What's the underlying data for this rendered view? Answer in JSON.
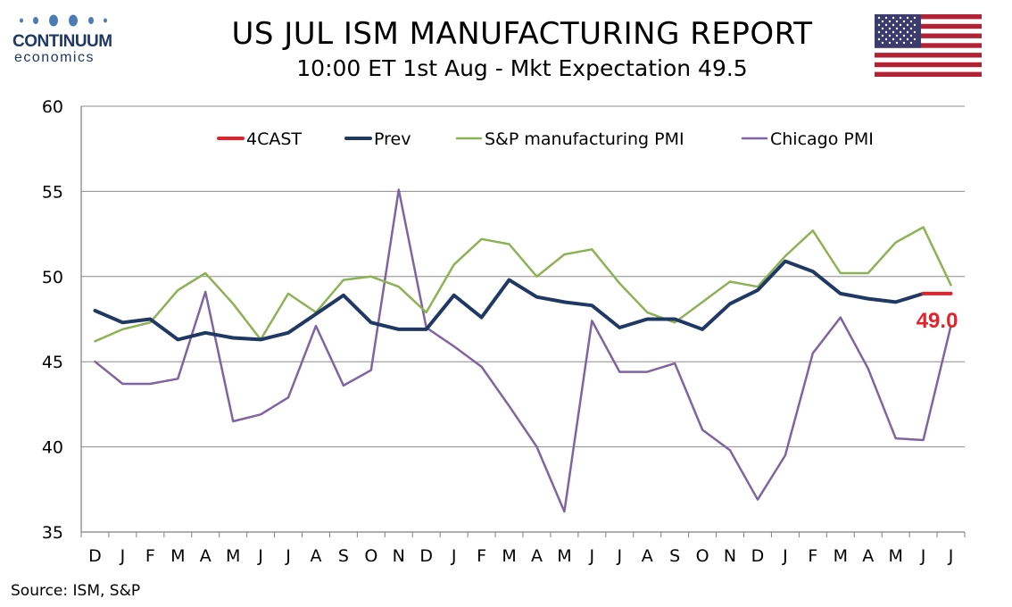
{
  "header": {
    "logo_name": "CONTINUUM",
    "logo_sub": "economics",
    "title": "US JUL ISM MANUFACTURING REPORT",
    "subtitle": "10:00 ET 1st Aug - Mkt Expectation 49.5",
    "flag_icon": "us-flag-icon"
  },
  "footer": {
    "source": "Source: ISM, S&P"
  },
  "chart_data": {
    "type": "line",
    "title": "",
    "xlabel": "",
    "ylabel": "",
    "ylim": [
      35,
      60
    ],
    "yticks": [
      35,
      40,
      45,
      50,
      55,
      60
    ],
    "grid": "horizontal",
    "legend_position": "top",
    "categories": [
      "D",
      "J",
      "F",
      "M",
      "A",
      "M",
      "J",
      "J",
      "A",
      "S",
      "O",
      "N",
      "D",
      "J",
      "F",
      "M",
      "A",
      "M",
      "J",
      "J",
      "A",
      "S",
      "O",
      "N",
      "D",
      "J",
      "F",
      "M",
      "A",
      "M",
      "J",
      "J"
    ],
    "series": [
      {
        "name": "4CAST",
        "color": "#e8202a",
        "width": 4,
        "values": [
          null,
          null,
          null,
          null,
          null,
          null,
          null,
          null,
          null,
          null,
          null,
          null,
          null,
          null,
          null,
          null,
          null,
          null,
          null,
          null,
          null,
          null,
          null,
          null,
          null,
          null,
          null,
          null,
          null,
          null,
          49.0,
          49.0
        ]
      },
      {
        "name": "Prev",
        "color": "#1f3864",
        "width": 4,
        "values": [
          48.0,
          47.3,
          47.5,
          46.3,
          46.7,
          46.4,
          46.3,
          46.7,
          47.8,
          48.9,
          47.3,
          46.9,
          46.9,
          48.9,
          47.6,
          49.8,
          48.8,
          48.5,
          48.3,
          47.0,
          47.5,
          47.5,
          46.9,
          48.4,
          49.2,
          50.9,
          50.3,
          49.0,
          48.7,
          48.5,
          49.0,
          null
        ]
      },
      {
        "name": "S&P manufacturing PMI",
        "color": "#8db255",
        "width": 2.5,
        "values": [
          46.2,
          46.9,
          47.3,
          49.2,
          50.2,
          48.4,
          46.3,
          49.0,
          47.9,
          49.8,
          50.0,
          49.4,
          47.9,
          50.7,
          52.2,
          51.9,
          50.0,
          51.3,
          51.6,
          49.6,
          47.9,
          47.3,
          48.5,
          49.7,
          49.4,
          51.2,
          52.7,
          50.2,
          50.2,
          52.0,
          52.9,
          49.5
        ]
      },
      {
        "name": "Chicago PMI",
        "color": "#8064a2",
        "width": 2.5,
        "values": [
          45.0,
          43.7,
          43.7,
          44.0,
          49.1,
          41.5,
          41.9,
          42.9,
          47.1,
          43.6,
          44.5,
          55.1,
          47.0,
          45.9,
          44.7,
          42.4,
          40.0,
          36.2,
          47.4,
          44.4,
          44.4,
          44.9,
          41.0,
          39.8,
          36.9,
          39.5,
          45.5,
          47.6,
          44.6,
          40.5,
          40.4,
          47.1
        ]
      }
    ],
    "annotations": [
      {
        "text": "49.0",
        "color": "#e8202a"
      }
    ]
  }
}
